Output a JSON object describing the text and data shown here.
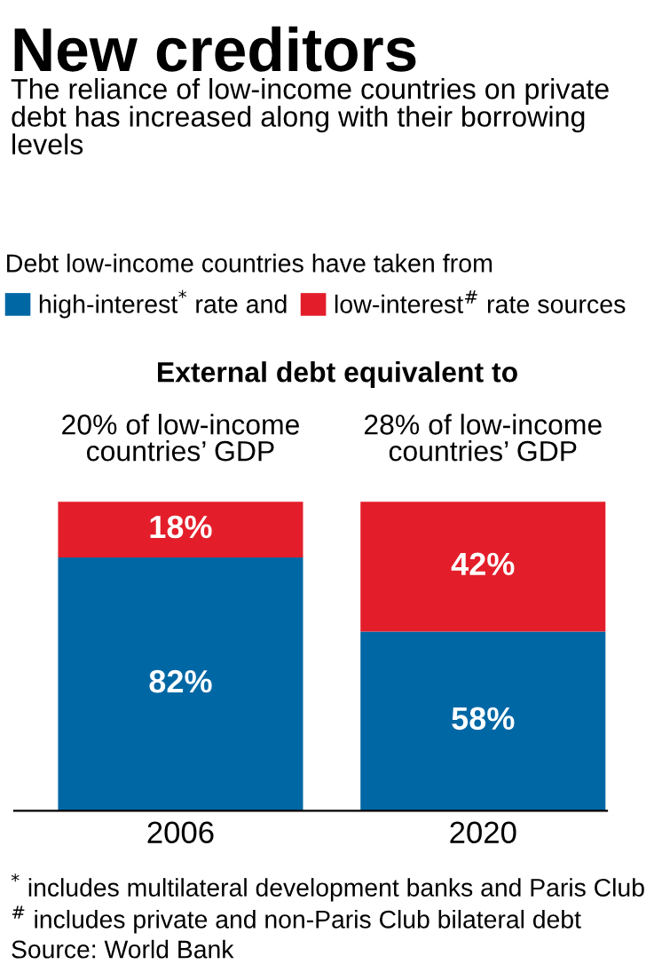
{
  "chart_data": {
    "type": "bar",
    "stacked": true,
    "title": "New creditors",
    "subtitle": "The reliance of low-income countries on private debt has increased along with their borrowing levels",
    "legend_title": "Debt low-income countries have taken from",
    "legend": "top",
    "categories": [
      "2006",
      "2020"
    ],
    "series": [
      {
        "name": "high-interest$^{*}$ rate and",
        "color": "#0067a5",
        "values": [
          82,
          58
        ],
        "value_labels": [
          "82%",
          "58%"
        ]
      },
      {
        "name": "low-interest$^{#}$ rate sources",
        "color": "#e31e2a",
        "values": [
          18,
          42
        ],
        "value_labels": [
          "18%",
          "42%"
        ]
      }
    ],
    "annotations": [
      "External debt equivalent to",
      "20% of low-income countries’ GDP",
      "28% of low-income countries’ GDP",
      "$^{*}$ includes multilateral development banks and Paris Club",
      "$^{#}$ includes private and non-Paris Club bilateral debt",
      "Source: World Bank"
    ]
  }
}
